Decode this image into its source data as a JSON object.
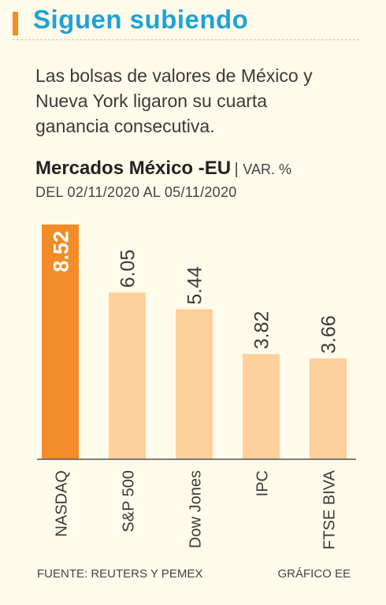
{
  "header": {
    "title": "Siguen subiendo",
    "lede": "Las bolsas de valores de México y Nueva York ligaron su cuarta ganancia consecutiva."
  },
  "chart_data": {
    "type": "bar",
    "title": "Mercados México -EU",
    "unit_label": "VAR. %",
    "subtitle": "DEL 02/11/2020 AL 05/11/2020",
    "categories": [
      "NASDAQ",
      "S&P 500",
      "Dow Jones",
      "IPC",
      "FTSE BIVA"
    ],
    "values": [
      8.52,
      6.05,
      5.44,
      3.82,
      3.66
    ],
    "value_labels": [
      "8.52",
      "6.05",
      "5.44",
      "3.82",
      "3.66"
    ],
    "ylim": [
      0,
      8.52
    ],
    "grid": false,
    "colors": {
      "highlight": "#f28c28",
      "bar": "#fdd09c",
      "axis": "#555555",
      "title_accent": "#1fa2d6"
    }
  },
  "footer": {
    "source": "FUENTE: REUTERS Y PEMEX",
    "credit": "GRÁFICO EE"
  }
}
